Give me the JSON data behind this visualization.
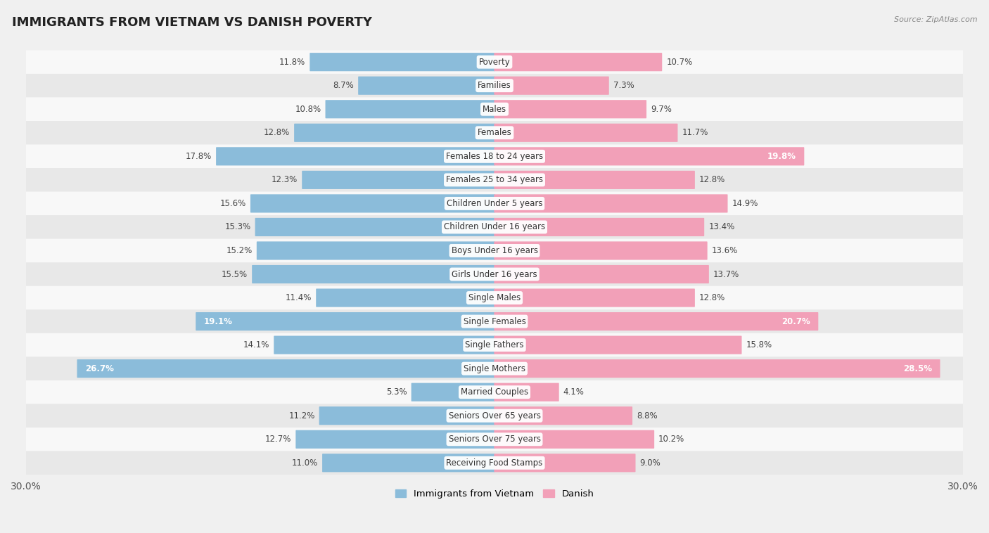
{
  "title": "IMMIGRANTS FROM VIETNAM VS DANISH POVERTY",
  "source": "Source: ZipAtlas.com",
  "categories": [
    "Poverty",
    "Families",
    "Males",
    "Females",
    "Females 18 to 24 years",
    "Females 25 to 34 years",
    "Children Under 5 years",
    "Children Under 16 years",
    "Boys Under 16 years",
    "Girls Under 16 years",
    "Single Males",
    "Single Females",
    "Single Fathers",
    "Single Mothers",
    "Married Couples",
    "Seniors Over 65 years",
    "Seniors Over 75 years",
    "Receiving Food Stamps"
  ],
  "vietnam_values": [
    11.8,
    8.7,
    10.8,
    12.8,
    17.8,
    12.3,
    15.6,
    15.3,
    15.2,
    15.5,
    11.4,
    19.1,
    14.1,
    26.7,
    5.3,
    11.2,
    12.7,
    11.0
  ],
  "danish_values": [
    10.7,
    7.3,
    9.7,
    11.7,
    19.8,
    12.8,
    14.9,
    13.4,
    13.6,
    13.7,
    12.8,
    20.7,
    15.8,
    28.5,
    4.1,
    8.8,
    10.2,
    9.0
  ],
  "vietnam_color": "#8BBCDA",
  "danish_color": "#F2A0B8",
  "vietnam_label": "Immigrants from Vietnam",
  "danish_label": "Danish",
  "xlim": 30.0,
  "background_color": "#f0f0f0",
  "row_colors_odd": "#f8f8f8",
  "row_colors_even": "#e8e8e8",
  "title_fontsize": 13,
  "label_fontsize": 8.5,
  "value_fontsize": 8.5,
  "axis_label_fontsize": 10,
  "inside_label_threshold_vietnam": 19.0,
  "inside_label_threshold_danish": 19.0
}
